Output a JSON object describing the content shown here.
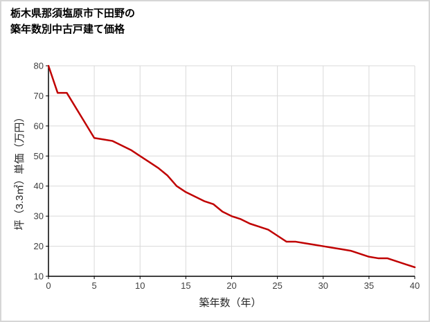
{
  "header": {
    "title_line1": "栃木県那須塩原市下田野の",
    "title_line2": "築年数別中古戸建て価格"
  },
  "chart_data": {
    "type": "line",
    "title": "栃木県那須塩原市下田野の築年数別中古戸建て価格",
    "xlabel": "築年数（年）",
    "ylabel": "坪（3.3㎡）単価（万円）",
    "x": [
      0,
      1,
      2,
      3,
      4,
      5,
      6,
      7,
      8,
      9,
      10,
      11,
      12,
      13,
      14,
      15,
      16,
      17,
      18,
      19,
      20,
      21,
      22,
      23,
      24,
      25,
      26,
      27,
      28,
      29,
      30,
      31,
      32,
      33,
      34,
      35,
      36,
      37,
      38,
      39,
      40
    ],
    "values": [
      80,
      71,
      71,
      66,
      61,
      56,
      55.5,
      55,
      53.5,
      52,
      50,
      48,
      46,
      43.5,
      40,
      38,
      36.5,
      35,
      34,
      31.5,
      30,
      29,
      27.5,
      26.5,
      25.5,
      23.5,
      21.5,
      21.5,
      21,
      20.5,
      20,
      19.5,
      19,
      18.5,
      17.5,
      16.5,
      16,
      16,
      15,
      14,
      13
    ],
    "xlim": [
      0,
      40
    ],
    "ylim": [
      10,
      80
    ],
    "xticks": [
      0,
      5,
      10,
      15,
      20,
      25,
      30,
      35,
      40
    ],
    "yticks": [
      10,
      20,
      30,
      40,
      50,
      60,
      70,
      80
    ],
    "grid": true,
    "legend": false,
    "colors": {
      "line": "#c00000",
      "grid": "#d9d9d9",
      "axis": "#000000"
    }
  }
}
